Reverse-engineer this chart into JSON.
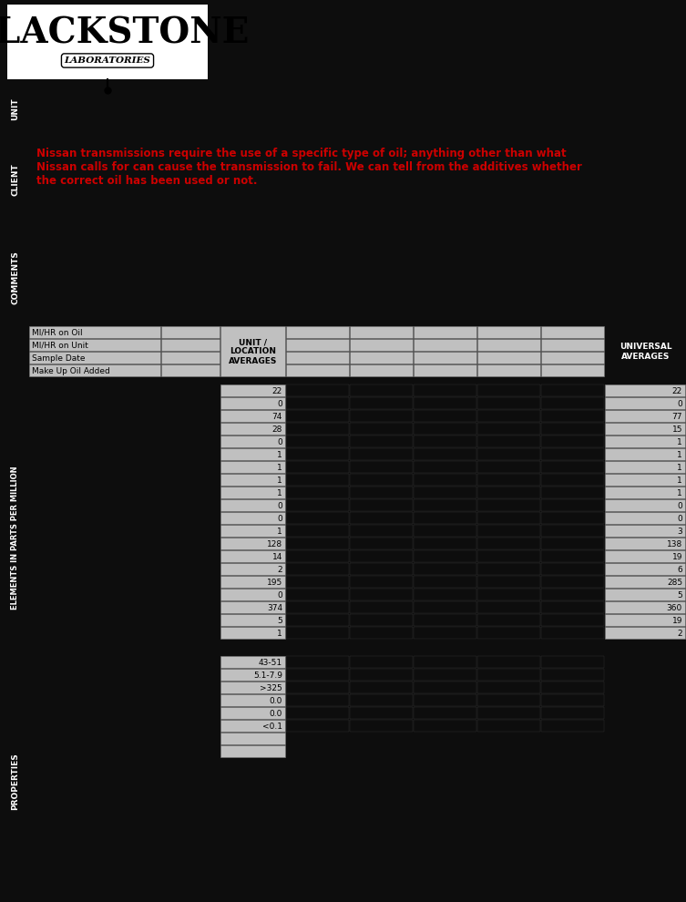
{
  "bg_color": "#0d0d0d",
  "cell_color": "#c0c0c0",
  "text_color": "#ffffff",
  "cell_text_color": "#000000",
  "red_text_color": "#cc0000",
  "client_text": "Nissan transmissions require the use of a specific type of oil; anything other than what\nNissan calls for can cause the transmission to fail. We can tell from the additives whether\nthe correct oil has been used or not.",
  "header_rows": [
    "MI/HR on Oil",
    "MI/HR on Unit",
    "Sample Date",
    "Make Up Oil Added"
  ],
  "unit_values": [
    "22",
    "0",
    "74",
    "28",
    "0",
    "1",
    "1",
    "1",
    "1",
    "0",
    "0",
    "1",
    "128",
    "14",
    "2",
    "195",
    "0",
    "374",
    "5",
    "1"
  ],
  "universal_values": [
    "22",
    "0",
    "77",
    "15",
    "1",
    "1",
    "1",
    "1",
    "1",
    "0",
    "0",
    "3",
    "138",
    "19",
    "6",
    "285",
    "5",
    "360",
    "19",
    "2"
  ],
  "property_unit_values": [
    "43-51",
    "5.1-7.9",
    ">325",
    "0.0",
    "0.0",
    "<0.1"
  ],
  "num_history_cols": 5,
  "unit_loc_header": "UNIT /\nLOCATION\nAVERAGES",
  "universal_header": "UNIVERSAL\nAVERAGES",
  "logo_text_big": "BLACKSTONE",
  "logo_text_small": "LABORATORIES"
}
